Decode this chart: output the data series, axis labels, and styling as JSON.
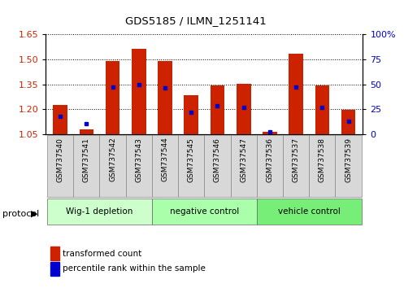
{
  "title": "GDS5185 / ILMN_1251141",
  "samples": [
    "GSM737540",
    "GSM737541",
    "GSM737542",
    "GSM737543",
    "GSM737544",
    "GSM737545",
    "GSM737546",
    "GSM737547",
    "GSM737536",
    "GSM737537",
    "GSM737538",
    "GSM737539"
  ],
  "transformed_count": [
    1.225,
    1.08,
    1.49,
    1.565,
    1.49,
    1.285,
    1.345,
    1.355,
    1.065,
    1.535,
    1.345,
    1.195
  ],
  "percentile_rank": [
    18,
    10,
    47,
    50,
    46,
    22,
    28,
    27,
    2,
    47,
    27,
    13
  ],
  "bar_color": "#cc2200",
  "dot_color": "#0000cc",
  "ylim_left": [
    1.05,
    1.65
  ],
  "ylim_right": [
    0,
    100
  ],
  "yticks_left": [
    1.05,
    1.2,
    1.35,
    1.5,
    1.65
  ],
  "yticks_right": [
    0,
    25,
    50,
    75,
    100
  ],
  "ytick_labels_right": [
    "0",
    "25",
    "50",
    "75",
    "100%"
  ],
  "bar_width": 0.55,
  "groups": [
    {
      "label": "Wig-1 depletion",
      "indices": [
        0,
        1,
        2,
        3
      ],
      "color": "#ccffcc"
    },
    {
      "label": "negative control",
      "indices": [
        4,
        5,
        6,
        7
      ],
      "color": "#aaffaa"
    },
    {
      "label": "vehicle control",
      "indices": [
        8,
        9,
        10,
        11
      ],
      "color": "#77ee77"
    }
  ],
  "protocol_label": "protocol",
  "legend_red": "transformed count",
  "legend_blue": "percentile rank within the sample",
  "axis_color_left": "#cc2200",
  "axis_color_right": "#0000cc"
}
